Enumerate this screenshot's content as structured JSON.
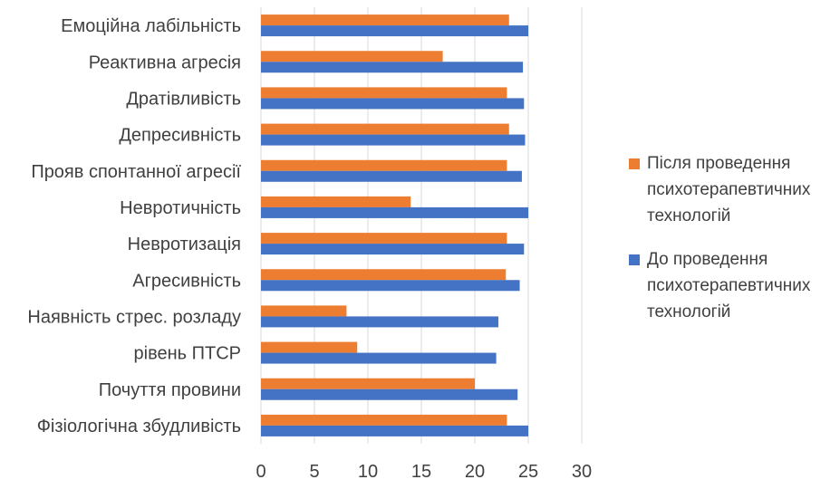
{
  "chart_data": {
    "type": "bar",
    "orientation": "horizontal",
    "categories": [
      "Емоційна лабільність",
      "Реактивна агресія",
      "Дратівливість",
      "Депресивність",
      "Прояв спонтанної агресії",
      "Невротичність",
      "Невротизація",
      "Агресивність",
      "Наявність стрес. розладу",
      "рівень ПТСР",
      "Почуття провини",
      "Фізіологічна збудливість"
    ],
    "series": [
      {
        "name": "Після проведення психотерапевтичних технологій",
        "color": "#ED7D31",
        "values": [
          23.2,
          17,
          23,
          23.2,
          23,
          14,
          23,
          22.9,
          8,
          9,
          20,
          23
        ]
      },
      {
        "name": "До проведення психотерапевтичних технологій",
        "color": "#4472C4",
        "values": [
          25,
          24.5,
          24.6,
          24.7,
          24.4,
          25,
          24.6,
          24.2,
          22.2,
          22,
          24,
          25
        ]
      }
    ],
    "xlim": [
      0,
      30
    ],
    "xticks": [
      0,
      5,
      10,
      15,
      20,
      25,
      30
    ],
    "grid": true,
    "legend": {
      "position": "right",
      "entries": [
        {
          "lines": [
            "Після проведення",
            "психотерапевтичних",
            "технологій"
          ],
          "color": "#ED7D31"
        },
        {
          "lines": [
            "До проведення",
            "психотерапевтичних",
            "технологій"
          ],
          "color": "#4472C4"
        }
      ]
    }
  }
}
